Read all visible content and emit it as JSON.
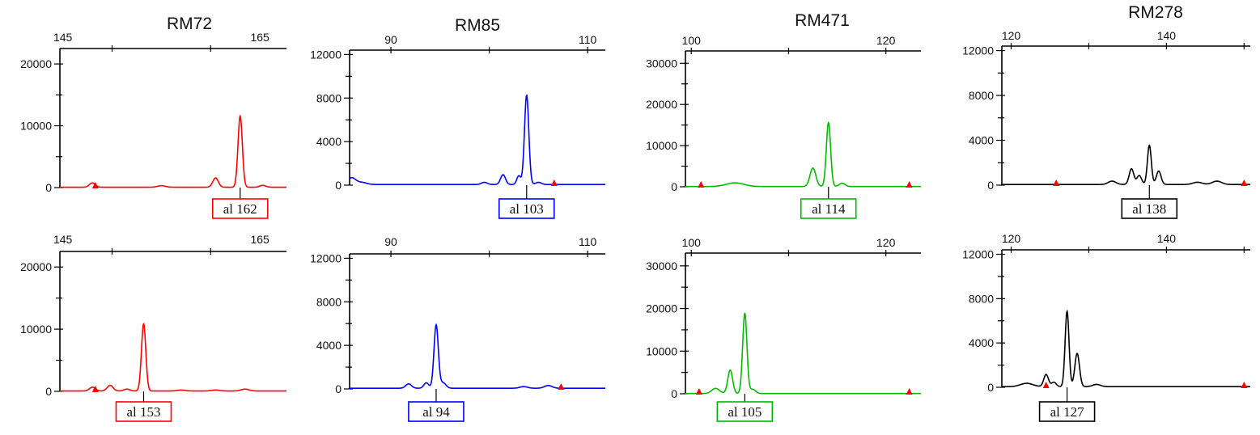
{
  "chart_data": [
    {
      "type": "line",
      "marker": "RM72",
      "color": "#ff0000",
      "title": "RM72",
      "x_ticks": [
        145,
        165
      ],
      "xlim": [
        144.7,
        167.7
      ],
      "y_ticks": [
        0,
        10000,
        20000
      ],
      "ylim": [
        0,
        22500
      ],
      "panels": [
        {
          "allele_label": "al 162",
          "peaks": [
            [
              148,
              700,
              0.3
            ],
            [
              155,
              250,
              0.4
            ],
            [
              160.5,
              1500,
              0.28
            ],
            [
              163,
              11500,
              0.22
            ],
            [
              165.3,
              300,
              0.3
            ]
          ],
          "markers": [
            148.3
          ]
        },
        {
          "allele_label": "al 153",
          "peaks": [
            [
              148,
              600,
              0.3
            ],
            [
              149.8,
              900,
              0.3
            ],
            [
              151.5,
              300,
              0.3
            ],
            [
              153.2,
              10800,
              0.22
            ],
            [
              157,
              150,
              0.4
            ],
            [
              160.5,
              150,
              0.4
            ],
            [
              163.5,
              300,
              0.4
            ]
          ],
          "markers": [
            148.3
          ]
        }
      ]
    },
    {
      "type": "line",
      "marker": "RM85",
      "color": "#0000ff",
      "title": "RM85",
      "x_ticks": [
        90,
        110
      ],
      "xlim": [
        85.8,
        111.8
      ],
      "y_ticks": [
        0,
        4000,
        8000,
        12000
      ],
      "ylim": [
        0,
        12400
      ],
      "panels": [
        {
          "allele_label": "al 103",
          "peaks": [
            [
              86.0,
              600,
              0.4
            ],
            [
              87,
              200,
              0.5
            ],
            [
              99.5,
              200,
              0.3
            ],
            [
              101.4,
              900,
              0.25
            ],
            [
              103.0,
              800,
              0.2
            ],
            [
              103.8,
              8200,
              0.22
            ],
            [
              105,
              200,
              0.3
            ]
          ],
          "markers": [
            106.6
          ]
        },
        {
          "allele_label": "al 94",
          "peaks": [
            [
              91.8,
              400,
              0.3
            ],
            [
              93.6,
              500,
              0.25
            ],
            [
              94.6,
              5800,
              0.22
            ],
            [
              95.3,
              500,
              0.3
            ],
            [
              103.5,
              150,
              0.4
            ],
            [
              106.0,
              250,
              0.4
            ]
          ],
          "markers": [
            107.3
          ]
        }
      ]
    },
    {
      "type": "line",
      "marker": "RM471",
      "color": "#00bb00",
      "title": "RM471",
      "x_ticks": [
        100,
        120
      ],
      "xlim": [
        99.4,
        123.6
      ],
      "y_ticks": [
        0,
        10000,
        20000,
        30000
      ],
      "ylim": [
        0,
        33000
      ],
      "panels": [
        {
          "allele_label": "al 114",
          "peaks": [
            [
              104.5,
              900,
              0.9
            ],
            [
              112.5,
              4500,
              0.3
            ],
            [
              114.1,
              15500,
              0.22
            ],
            [
              115.5,
              800,
              0.3
            ]
          ],
          "markers": [
            101.0,
            122.4
          ]
        },
        {
          "allele_label": "al 105",
          "peaks": [
            [
              102.5,
              1200,
              0.4
            ],
            [
              104.0,
              5500,
              0.25
            ],
            [
              105.5,
              18800,
              0.22
            ],
            [
              106.3,
              1000,
              0.3
            ]
          ],
          "markers": [
            100.8,
            122.4
          ]
        }
      ]
    },
    {
      "type": "line",
      "marker": "RM278",
      "color": "#000000",
      "title": "RM278",
      "x_ticks": [
        120,
        140
      ],
      "xlim": [
        118.8,
        150.8
      ],
      "y_ticks": [
        0,
        4000,
        8000,
        12000
      ],
      "ylim": [
        0,
        12400
      ],
      "panels": [
        {
          "allele_label": "al 138",
          "peaks": [
            [
              133,
              300,
              0.5
            ],
            [
              135.5,
              1400,
              0.3
            ],
            [
              136.5,
              800,
              0.3
            ],
            [
              137.8,
              3500,
              0.25
            ],
            [
              139,
              1200,
              0.3
            ],
            [
              144,
              200,
              0.6
            ],
            [
              146.5,
              300,
              0.6
            ]
          ],
          "markers": [
            125.8,
            150.0
          ]
        },
        {
          "allele_label": "al 127",
          "peaks": [
            [
              122,
              300,
              0.8
            ],
            [
              124.5,
              1100,
              0.3
            ],
            [
              125.5,
              400,
              0.3
            ],
            [
              127.2,
              6800,
              0.25
            ],
            [
              128.5,
              3000,
              0.3
            ],
            [
              131,
              200,
              0.5
            ]
          ],
          "markers": [
            124.5,
            150.0
          ]
        }
      ]
    }
  ]
}
